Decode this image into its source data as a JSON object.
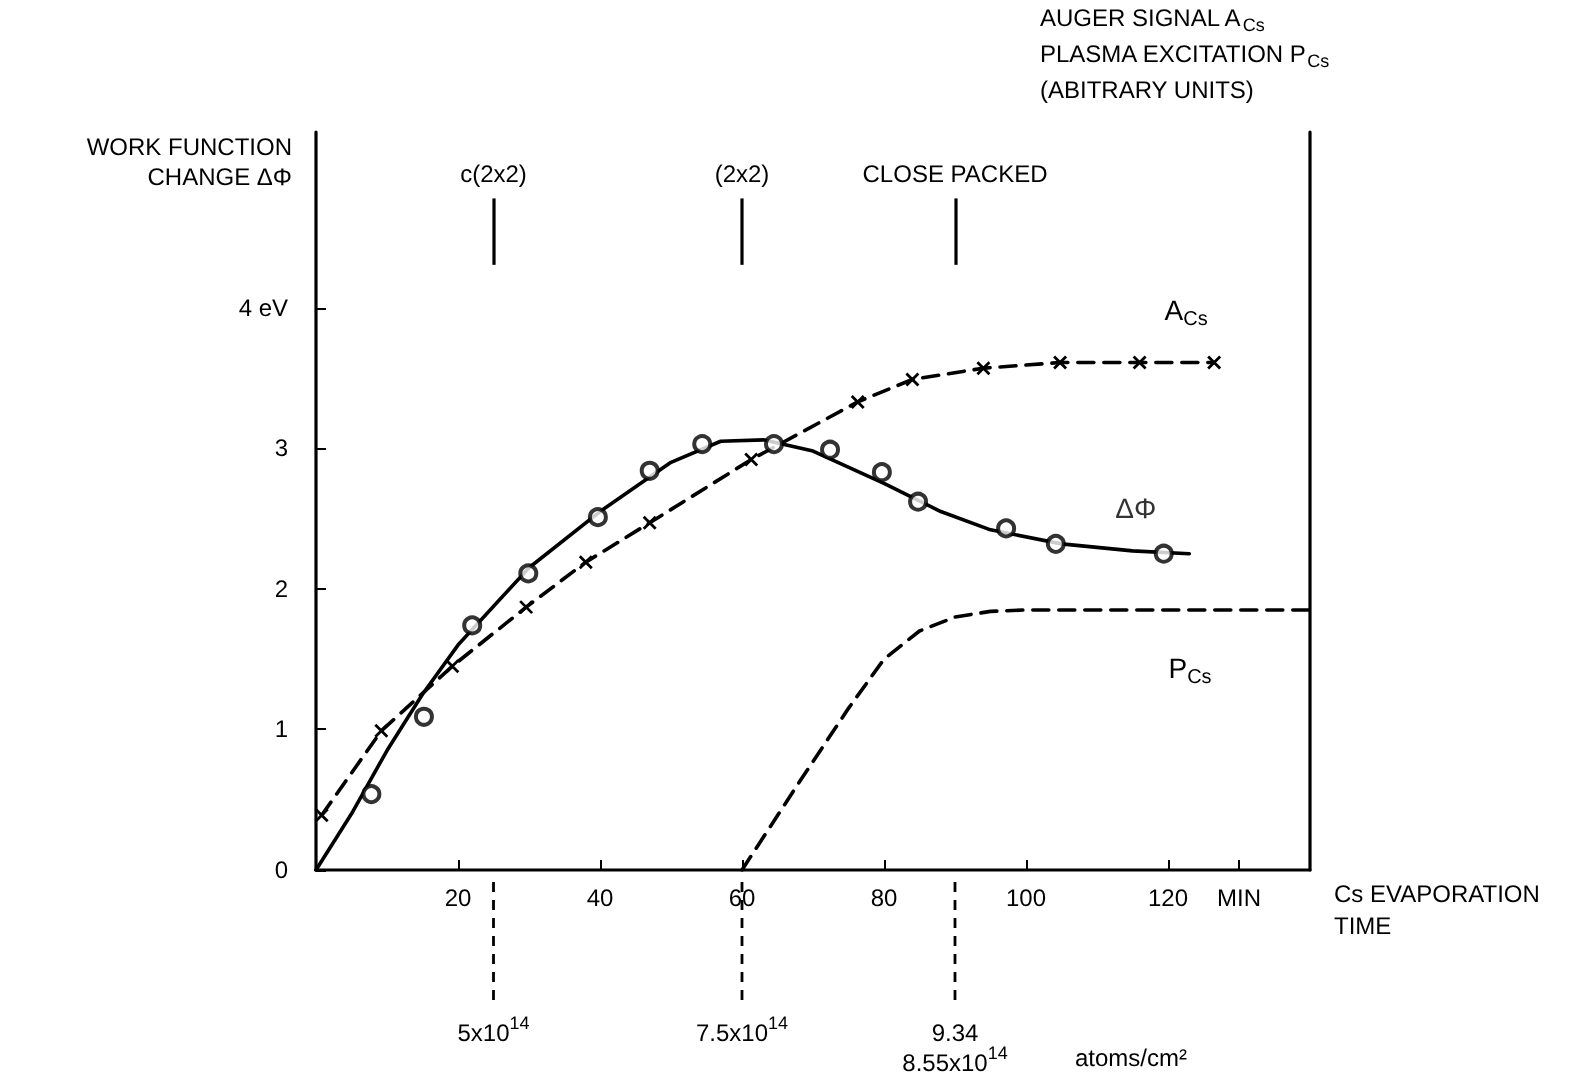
{
  "chart_data": {
    "type": "scatter",
    "xlabel": "Cs EVAPORATION\nTIME",
    "ylabel": "WORK FUNCTION\nCHANGE ΔΦ",
    "y2label": "AUGER SIGNAL A$_{Cs}$\nPLASMA EXCITATION P$_{Cs}$\n(ABITRARY UNITS)",
    "xlim": [
      0,
      140
    ],
    "ylim": [
      0,
      5.25
    ],
    "xticks": [
      20,
      40,
      60,
      80,
      100,
      120,
      {
        "value": 130,
        "label": "MIN"
      }
    ],
    "yticks": [
      0,
      1,
      2,
      3,
      {
        "value": 4,
        "label": "4 eV"
      }
    ],
    "annotations": [
      "atoms/cm²"
    ],
    "ref_lines": [
      {
        "axis": "x",
        "value": 25,
        "label": "c(2x2)"
      },
      {
        "axis": "x",
        "value": 60,
        "label": "(2x2)"
      },
      {
        "axis": "x",
        "value": 90,
        "label": "CLOSE PACKED"
      },
      {
        "axis": "x",
        "value": 25,
        "label": "5x10$^{14}$",
        "line_style": "dashed"
      },
      {
        "axis": "x",
        "value": 60,
        "label": "7.5x10$^{14}$",
        "line_style": "dashed"
      },
      {
        "axis": "x",
        "value": 90,
        "label": "9.34\n8.55x10$^{14}$",
        "line_style": "dashed"
      }
    ],
    "series": [
      {
        "name": "ΔΦ",
        "marker": "circle",
        "color": "#000000",
        "x": [
          7.8,
          15.2,
          22,
          29.9,
          39.7,
          47,
          54.4,
          64.5,
          72.4,
          79.7,
          84.8,
          97.2,
          104.2,
          119.4
        ],
        "values": [
          0.54,
          1.09,
          1.74,
          2.11,
          2.51,
          2.84,
          3.03,
          3.03,
          2.99,
          2.83,
          2.62,
          2.43,
          2.32,
          2.25
        ]
      },
      {
        "type": "line",
        "line_style": "solid",
        "marker": "none",
        "color": "#000000",
        "x": [
          0,
          5,
          10,
          15,
          20,
          30,
          40,
          50,
          57,
          63,
          70,
          80,
          88,
          95,
          105,
          115,
          123
        ],
        "values": [
          0,
          0.4,
          0.85,
          1.25,
          1.6,
          2.15,
          2.55,
          2.9,
          3.05,
          3.06,
          2.98,
          2.75,
          2.55,
          2.42,
          2.32,
          2.27,
          2.25
        ]
      },
      {
        "name": "A$_{Cs}$",
        "type": "line",
        "line_style": "dashed",
        "marker": "cross",
        "color": "#000000",
        "x": [
          0.8,
          9.2,
          19.2,
          29.6,
          38,
          47,
          61.3,
          76.3,
          84,
          94,
          104.8,
          116,
          126.5
        ],
        "values": [
          0.39,
          0.99,
          1.45,
          1.87,
          2.19,
          2.47,
          2.92,
          3.33,
          3.49,
          3.57,
          3.61,
          3.61,
          3.61
        ]
      },
      {
        "name": "P$_{Cs}$",
        "type": "line",
        "line_style": "dashed",
        "marker": "none",
        "color": "#000000",
        "x": [
          60,
          68,
          75,
          80,
          85,
          90,
          95,
          100,
          140
        ],
        "values": [
          0,
          0.62,
          1.15,
          1.5,
          1.7,
          1.8,
          1.84,
          1.85,
          1.85
        ]
      }
    ]
  }
}
